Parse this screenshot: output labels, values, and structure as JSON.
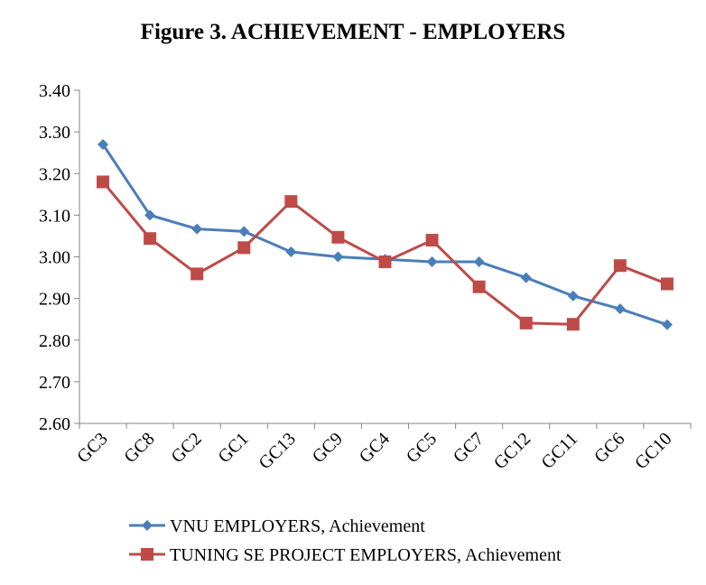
{
  "chart_data": {
    "type": "line",
    "title": "Figure 3. ACHIEVEMENT - EMPLOYERS",
    "xlabel": "",
    "ylabel": "",
    "categories": [
      "GC3",
      "GC8",
      "GC2",
      "GC1",
      "GC13",
      "GC9",
      "GC4",
      "GC5",
      "GC7",
      "GC12",
      "GC11",
      "GC6",
      "GC10"
    ],
    "ylim": [
      2.6,
      3.4
    ],
    "ytick_labels": [
      "2.60",
      "2.70",
      "2.80",
      "2.90",
      "3.00",
      "3.10",
      "3.20",
      "3.30",
      "3.40"
    ],
    "grid": false,
    "legend_position": "bottom",
    "series": [
      {
        "name": "VNU EMPLOYERS, Achievement",
        "color": "#4a7ebb",
        "marker": "diamond",
        "values": [
          3.27,
          3.1,
          3.067,
          3.061,
          3.012,
          3.0,
          2.994,
          2.988,
          2.988,
          2.95,
          2.906,
          2.875,
          2.837
        ]
      },
      {
        "name": "TUNING SE PROJECT EMPLOYERS, Achievement",
        "color": "#be4b48",
        "marker": "square",
        "values": [
          3.18,
          3.044,
          2.959,
          3.022,
          3.133,
          3.047,
          2.988,
          3.04,
          2.928,
          2.841,
          2.838,
          2.979,
          2.935
        ]
      }
    ]
  }
}
